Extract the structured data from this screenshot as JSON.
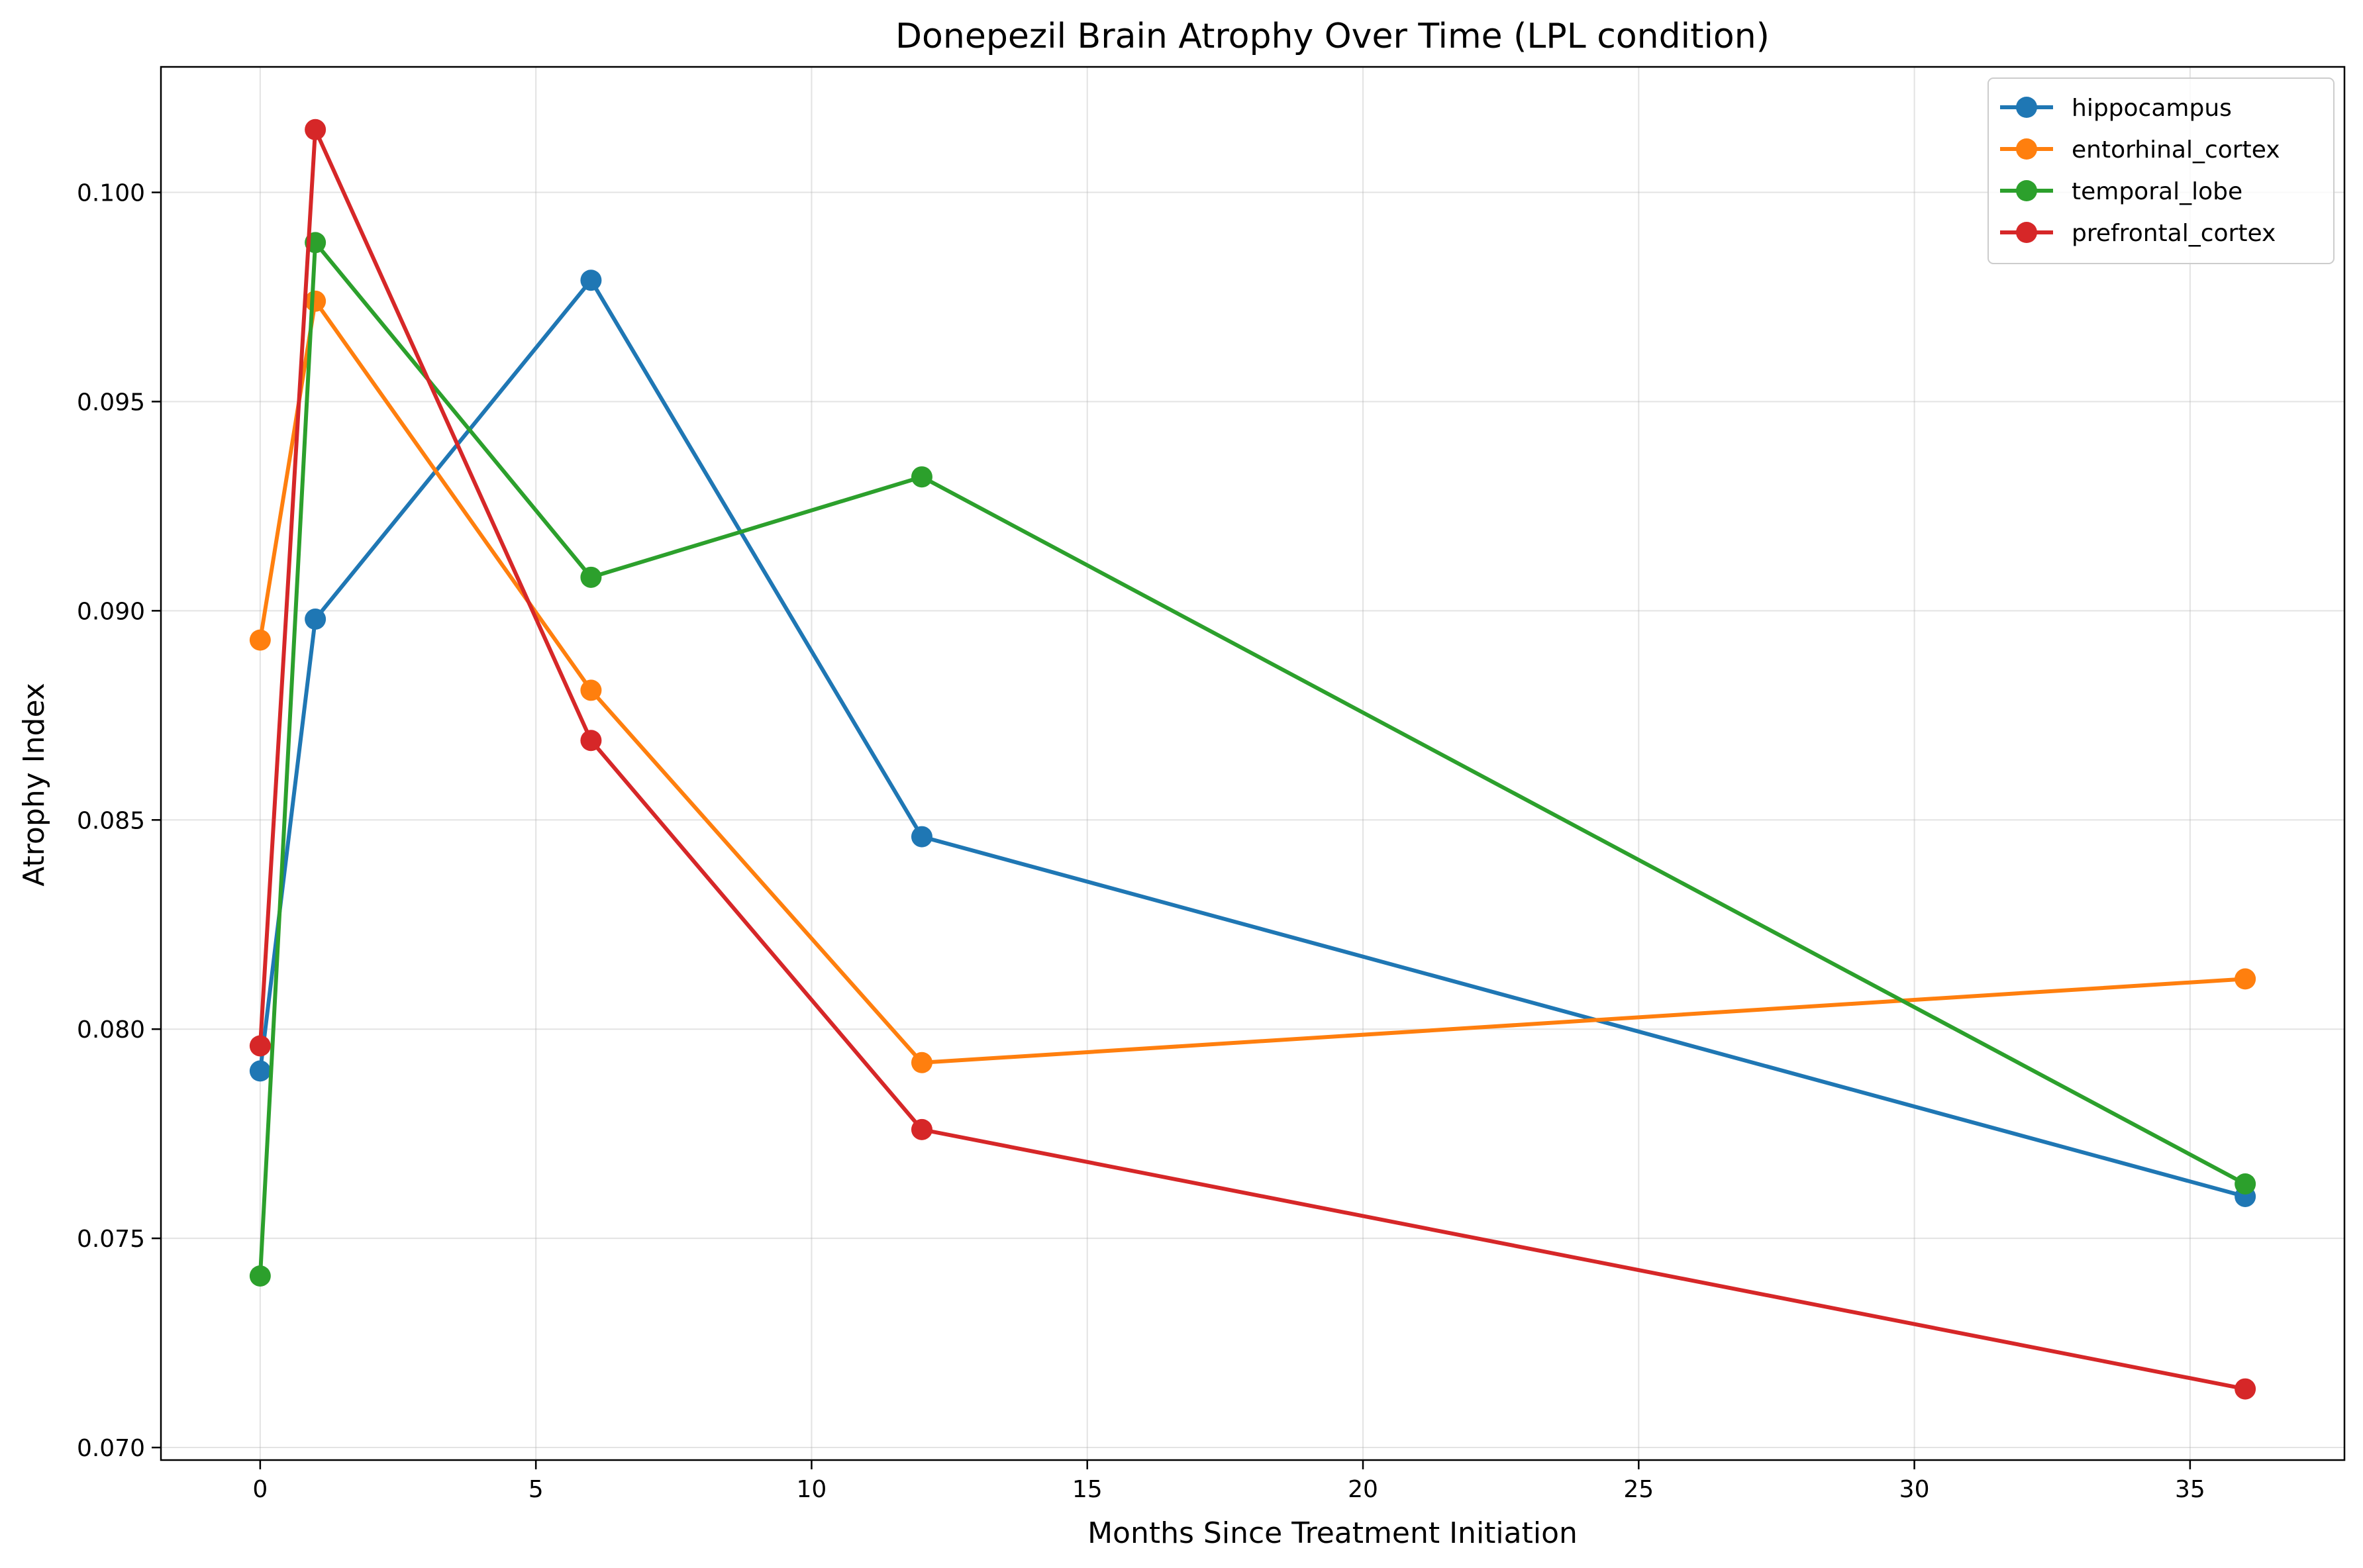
{
  "chart_data": {
    "type": "line",
    "title": "Donepezil Brain Atrophy Over Time (LPL condition)",
    "xlabel": "Months Since Treatment Initiation",
    "ylabel": "Atrophy Index",
    "xlim": [
      -1.8,
      37.8
    ],
    "ylim": [
      0.0697,
      0.103
    ],
    "xticks": [
      0,
      5,
      10,
      15,
      20,
      25,
      30,
      35
    ],
    "yticks": [
      0.07,
      0.075,
      0.08,
      0.085,
      0.09,
      0.095,
      0.1
    ],
    "ytick_labels": [
      "0.070",
      "0.075",
      "0.080",
      "0.085",
      "0.090",
      "0.095",
      "0.100"
    ],
    "grid": true,
    "legend_position": "top-right",
    "x": [
      0,
      1,
      6,
      12,
      36
    ],
    "series": [
      {
        "name": "hippocampus",
        "color": "#1f77b4",
        "values": [
          0.079,
          0.0898,
          0.0979,
          0.0846,
          0.076
        ]
      },
      {
        "name": "entorhinal_cortex",
        "color": "#ff7f0e",
        "values": [
          0.0893,
          0.0974,
          0.0881,
          0.0792,
          0.0812
        ]
      },
      {
        "name": "temporal_lobe",
        "color": "#2ca02c",
        "values": [
          0.0741,
          0.0988,
          0.0908,
          0.0932,
          0.0763
        ]
      },
      {
        "name": "prefrontal_cortex",
        "color": "#d62728",
        "values": [
          0.0796,
          0.1015,
          0.0869,
          0.0776,
          0.0714
        ]
      }
    ]
  }
}
